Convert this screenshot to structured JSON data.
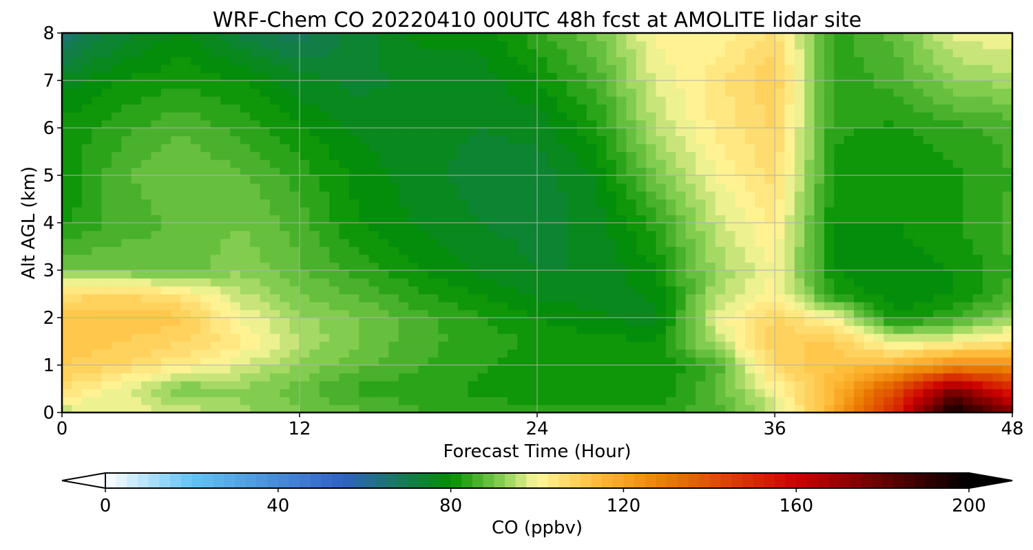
{
  "chart_data": {
    "type": "heatmap",
    "title": "WRF-Chem CO  20220410 00UTC 48h fcst at AMOLITE lidar site",
    "xlabel": "Forecast Time (Hour)",
    "ylabel": "Alt AGL (km)",
    "xlim": [
      0,
      48
    ],
    "ylim": [
      0,
      8
    ],
    "x_ticks": [
      0,
      12,
      24,
      36,
      48
    ],
    "y_ticks": [
      0,
      1,
      2,
      3,
      4,
      5,
      6,
      7,
      8
    ],
    "grid": true,
    "x": [
      0,
      3,
      6,
      9,
      12,
      15,
      18,
      21,
      24,
      27,
      30,
      33,
      36,
      39,
      42,
      45,
      48
    ],
    "y": [
      0,
      0.5,
      1,
      1.5,
      2,
      2.5,
      3,
      4,
      5,
      6,
      7,
      8
    ],
    "values": [
      [
        95,
        100,
        97,
        93,
        90,
        88,
        85,
        84,
        84,
        84,
        84,
        86,
        95,
        118,
        150,
        200,
        175
      ],
      [
        106,
        98,
        90,
        92,
        89,
        84,
        84,
        82,
        80,
        80,
        80,
        88,
        100,
        115,
        140,
        175,
        150
      ],
      [
        110,
        108,
        103,
        98,
        92,
        88,
        85,
        83,
        81,
        80,
        80,
        85,
        108,
        112,
        115,
        125,
        125
      ],
      [
        112,
        110,
        108,
        103,
        95,
        90,
        86,
        84,
        82,
        81,
        80,
        95,
        110,
        110,
        98,
        100,
        105
      ],
      [
        112,
        112,
        111,
        100,
        93,
        90,
        86,
        83,
        80,
        78,
        76,
        98,
        108,
        100,
        80,
        85,
        92
      ],
      [
        106,
        108,
        104,
        96,
        90,
        87,
        83,
        80,
        77,
        76,
        78,
        94,
        102,
        82,
        78,
        80,
        86
      ],
      [
        90,
        90,
        88,
        92,
        88,
        84,
        80,
        77,
        75,
        75,
        80,
        93,
        100,
        80,
        78,
        80,
        85
      ],
      [
        82,
        86,
        88,
        90,
        86,
        80,
        77,
        75,
        74,
        76,
        84,
        96,
        103,
        80,
        80,
        82,
        86
      ],
      [
        80,
        87,
        90,
        88,
        84,
        79,
        76,
        74,
        73,
        78,
        90,
        100,
        106,
        82,
        80,
        82,
        85
      ],
      [
        81,
        84,
        87,
        84,
        80,
        77,
        76,
        75,
        76,
        82,
        95,
        103,
        108,
        83,
        82,
        84,
        86
      ],
      [
        76,
        80,
        82,
        80,
        76,
        74,
        76,
        76,
        80,
        86,
        98,
        104,
        110,
        83,
        86,
        92,
        94
      ],
      [
        66,
        74,
        78,
        72,
        68,
        74,
        78,
        78,
        84,
        90,
        101,
        100,
        106,
        84,
        88,
        98,
        100
      ]
    ],
    "colorbar": {
      "label": "CO  (ppbv)",
      "range": [
        0,
        200
      ],
      "ticks": [
        0,
        40,
        80,
        120,
        160,
        200
      ],
      "extend": "both",
      "colors": [
        "#ffffff",
        "#63c3f5",
        "#3061c4",
        "#018f00",
        "#8bd154",
        "#fff79b",
        "#ffb732",
        "#ea7b00",
        "#ce0000",
        "#000000"
      ]
    }
  }
}
